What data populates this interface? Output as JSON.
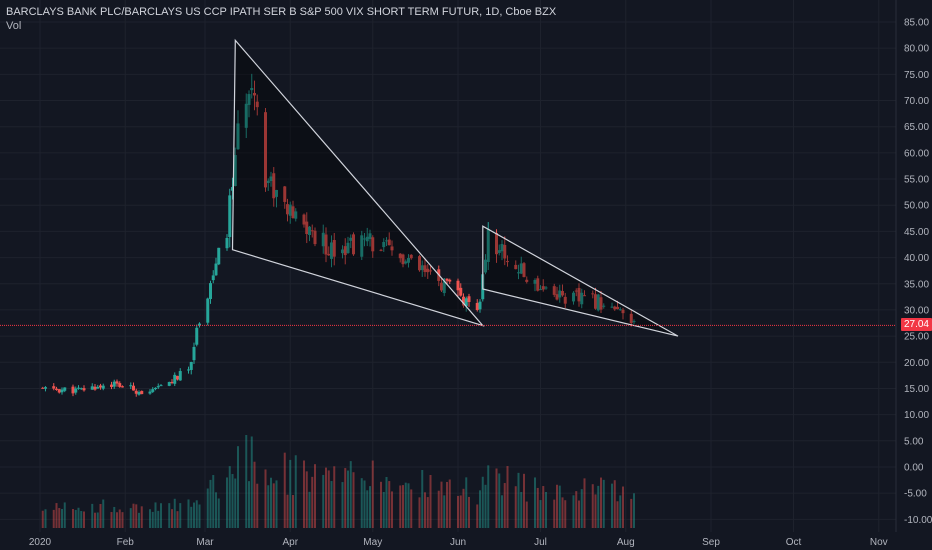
{
  "header": {
    "title": "BARCLAYS BANK PLC/BARCLAYS US CCP IPATH SER B S&P 500 VIX SHORT TERM FUTUR, 1D, Cboe BZX",
    "volume_label": "Vol"
  },
  "last_price_label": "27.04",
  "chart_data": {
    "type": "candlestick",
    "symbol_description": "BARCLAYS BANK PLC/BARCLAYS US CCP IPATH SER B S&P 500 VIX SHORT TERM FUTUR",
    "interval": "1D",
    "exchange": "Cboe BZX",
    "ylim": [
      -12,
      88
    ],
    "y_ticks": [
      "85.00",
      "80.00",
      "75.00",
      "70.00",
      "65.00",
      "60.00",
      "55.00",
      "50.00",
      "45.00",
      "40.00",
      "35.00",
      "30.00",
      "25.00",
      "20.00",
      "15.00",
      "10.00",
      "5.00",
      "0.00",
      "-5.00",
      "-10.00"
    ],
    "y_tick_values": [
      85,
      80,
      75,
      70,
      65,
      60,
      55,
      50,
      45,
      40,
      35,
      30,
      25,
      20,
      15,
      10,
      5,
      0,
      -5,
      -10
    ],
    "x_ticks": [
      "2020",
      "Feb",
      "Mar",
      "Apr",
      "May",
      "Jun",
      "Jul",
      "Aug",
      "Sep",
      "Oct",
      "Nov"
    ],
    "x_tick_days": [
      0,
      31,
      60,
      91,
      121,
      152,
      182,
      213,
      244,
      274,
      305
    ],
    "last_price": 27.04,
    "colors": {
      "up": "#26a69a",
      "down": "#ef5350",
      "background": "#131722",
      "grid": "#1e222d",
      "last_price_line": "#f23645",
      "drawing": "#d1d4dc"
    },
    "candles_sampled": [
      {
        "x": "2020-01-02",
        "close": 14.9
      },
      {
        "x": "2020-01-15",
        "close": 14.6
      },
      {
        "x": "2020-01-27",
        "close": 15.9
      },
      {
        "x": "2020-02-10",
        "close": 14.0
      },
      {
        "x": "2020-02-24",
        "close": 18.5
      },
      {
        "x": "2020-02-28",
        "close": 28.5
      },
      {
        "x": "2020-03-09",
        "close": 45.0
      },
      {
        "x": "2020-03-12",
        "close": 60.0
      },
      {
        "x": "2020-03-18",
        "close": 76.0
      },
      {
        "x": "2020-03-23",
        "close": 56.0
      },
      {
        "x": "2020-04-01",
        "close": 48.0
      },
      {
        "x": "2020-04-15",
        "close": 42.0
      },
      {
        "x": "2020-05-01",
        "close": 43.0
      },
      {
        "x": "2020-05-15",
        "close": 38.5
      },
      {
        "x": "2020-06-01",
        "close": 33.0
      },
      {
        "x": "2020-06-08",
        "close": 28.7
      },
      {
        "x": "2020-06-12",
        "close": 44.0
      },
      {
        "x": "2020-06-26",
        "close": 36.0
      },
      {
        "x": "2020-07-10",
        "close": 32.5
      },
      {
        "x": "2020-07-24",
        "close": 31.5
      },
      {
        "x": "2020-08-04",
        "close": 27.0
      }
    ],
    "drawings": [
      {
        "type": "triangle",
        "points": [
          {
            "x": "2020-03-12",
            "y": 81.5
          },
          {
            "x": "2020-03-11",
            "y": 41.5
          },
          {
            "x": "2020-06-10",
            "y": 27.0
          }
        ]
      },
      {
        "type": "triangle",
        "points": [
          {
            "x": "2020-06-10",
            "y": 46.0
          },
          {
            "x": "2020-06-10",
            "y": 34.0
          },
          {
            "x": "2020-08-20",
            "y": 25.0
          }
        ]
      }
    ]
  }
}
